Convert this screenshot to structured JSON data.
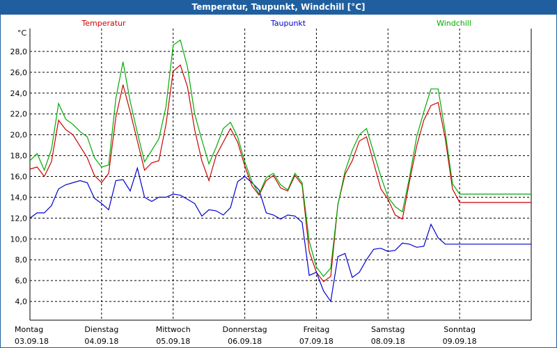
{
  "window": {
    "title": "Temperatur, Taupunkt, Windchill [°C]"
  },
  "chart_data": {
    "type": "line",
    "title": "Temperatur, Taupunkt, Windchill [°C]",
    "ylabel": "°C",
    "ylim": [
      2.2,
      30.2
    ],
    "yticks": [
      "4,0",
      "6,0",
      "8,0",
      "10,0",
      "12,0",
      "14,0",
      "16,0",
      "18,0",
      "20,0",
      "22,0",
      "24,0",
      "26,0",
      "28,0"
    ],
    "ytick_values": [
      4,
      6,
      8,
      10,
      12,
      14,
      16,
      18,
      20,
      22,
      24,
      26,
      28
    ],
    "xlim": [
      0,
      7
    ],
    "x_labels": [
      {
        "day": "Montag",
        "date": "03.09.18"
      },
      {
        "day": "Dienstag",
        "date": "04.09.18"
      },
      {
        "day": "Mittwoch",
        "date": "05.09.18"
      },
      {
        "day": "Donnerstag",
        "date": "06.09.18"
      },
      {
        "day": "Freitag",
        "date": "07.09.18"
      },
      {
        "day": "Samstag",
        "date": "08.09.18"
      },
      {
        "day": "Sonntag",
        "date": "09.09.18"
      }
    ],
    "grid": true,
    "series": [
      {
        "name": "Temperatur",
        "color": "#cc0000",
        "x": [
          0,
          0.1,
          0.2,
          0.3,
          0.4,
          0.5,
          0.6,
          0.7,
          0.8,
          0.9,
          1.0,
          1.1,
          1.2,
          1.3,
          1.4,
          1.5,
          1.6,
          1.7,
          1.8,
          1.9,
          2.0,
          2.1,
          2.2,
          2.3,
          2.4,
          2.5,
          2.6,
          2.7,
          2.8,
          2.9,
          3.0,
          3.1,
          3.2,
          3.3,
          3.4,
          3.5,
          3.6,
          3.7,
          3.8,
          3.9,
          4.0,
          4.1,
          4.2,
          4.3,
          4.4,
          4.5,
          4.6,
          4.7,
          4.8,
          4.9,
          5.0,
          5.1,
          5.2,
          5.3,
          5.4,
          5.5,
          5.6,
          5.7,
          5.8,
          5.9,
          6.0,
          6.1,
          6.2,
          6.3,
          6.4,
          6.5,
          6.6,
          6.7,
          6.8,
          6.9,
          7.0
        ],
        "values": [
          16.7,
          16.9,
          16.0,
          17.4,
          21.4,
          20.5,
          20.0,
          18.9,
          17.8,
          16.1,
          15.4,
          16.3,
          21.7,
          24.8,
          22.2,
          19.4,
          16.6,
          17.3,
          17.5,
          21.0,
          26.1,
          26.7,
          24.6,
          20.5,
          17.5,
          15.6,
          18.0,
          19.3,
          20.6,
          19.3,
          17.0,
          15.1,
          14.2,
          15.6,
          16.1,
          14.9,
          14.6,
          16.1,
          15.2,
          8.8,
          6.8,
          5.9,
          6.4,
          13.3,
          16.2,
          17.5,
          19.4,
          19.8,
          17.3,
          14.8,
          13.8,
          12.3,
          11.9,
          15.5,
          18.9,
          21.4,
          22.8,
          23.1,
          19.6,
          14.8,
          13.5,
          13.5,
          13.5,
          13.5,
          13.5,
          13.5,
          13.5,
          13.5,
          13.5,
          13.5,
          13.5
        ]
      },
      {
        "name": "Taupunkt",
        "color": "#0000cc",
        "x": [
          0,
          0.1,
          0.2,
          0.3,
          0.4,
          0.5,
          0.6,
          0.7,
          0.8,
          0.9,
          1.0,
          1.1,
          1.2,
          1.3,
          1.4,
          1.5,
          1.6,
          1.7,
          1.8,
          1.9,
          2.0,
          2.1,
          2.2,
          2.3,
          2.4,
          2.5,
          2.6,
          2.7,
          2.8,
          2.9,
          3.0,
          3.1,
          3.2,
          3.3,
          3.4,
          3.5,
          3.6,
          3.7,
          3.8,
          3.9,
          4.0,
          4.1,
          4.2,
          4.3,
          4.4,
          4.5,
          4.6,
          4.7,
          4.8,
          4.9,
          5.0,
          5.1,
          5.2,
          5.3,
          5.4,
          5.5,
          5.6,
          5.7,
          5.8,
          5.9,
          6.0,
          6.1,
          6.2,
          6.3,
          6.4,
          6.5,
          6.6,
          6.7,
          6.8,
          6.9,
          7.0
        ],
        "values": [
          12.0,
          12.5,
          12.5,
          13.2,
          14.8,
          15.2,
          15.4,
          15.6,
          15.4,
          13.9,
          13.4,
          12.8,
          15.6,
          15.7,
          14.6,
          16.8,
          14.0,
          13.6,
          14.0,
          14.0,
          14.3,
          14.2,
          13.8,
          13.4,
          12.2,
          12.8,
          12.7,
          12.3,
          13.0,
          15.5,
          16.0,
          15.4,
          14.7,
          12.5,
          12.3,
          11.9,
          12.3,
          12.2,
          11.6,
          6.5,
          6.8,
          5.0,
          4.0,
          8.3,
          8.6,
          6.3,
          6.8,
          8.0,
          9.0,
          9.1,
          8.8,
          8.9,
          9.6,
          9.5,
          9.2,
          9.3,
          11.4,
          10.1,
          9.5,
          9.5,
          9.5,
          9.5,
          9.5,
          9.5,
          9.5,
          9.5,
          9.5,
          9.5,
          9.5,
          9.5,
          9.5
        ]
      },
      {
        "name": "Windchill",
        "color": "#00aa00",
        "x": [
          0,
          0.1,
          0.2,
          0.3,
          0.4,
          0.5,
          0.6,
          0.7,
          0.8,
          0.9,
          1.0,
          1.1,
          1.2,
          1.3,
          1.4,
          1.5,
          1.6,
          1.7,
          1.8,
          1.9,
          2.0,
          2.1,
          2.2,
          2.3,
          2.4,
          2.5,
          2.6,
          2.7,
          2.8,
          2.9,
          3.0,
          3.1,
          3.2,
          3.3,
          3.4,
          3.5,
          3.6,
          3.7,
          3.8,
          3.9,
          4.0,
          4.1,
          4.2,
          4.3,
          4.4,
          4.5,
          4.6,
          4.7,
          4.8,
          4.9,
          5.0,
          5.1,
          5.2,
          5.3,
          5.4,
          5.5,
          5.6,
          5.7,
          5.8,
          5.9,
          6.0,
          6.1,
          6.2,
          6.3,
          6.4,
          6.5,
          6.6,
          6.7,
          6.8,
          6.9,
          7.0
        ],
        "values": [
          17.5,
          18.2,
          16.6,
          18.6,
          23.0,
          21.5,
          21.0,
          20.3,
          19.8,
          17.8,
          16.9,
          17.1,
          23.5,
          27.0,
          23.2,
          20.2,
          17.4,
          18.5,
          19.6,
          22.7,
          28.6,
          29.1,
          26.5,
          22.0,
          19.5,
          17.2,
          18.8,
          20.6,
          21.2,
          19.8,
          17.4,
          15.5,
          14.3,
          15.9,
          16.3,
          15.2,
          14.7,
          16.3,
          15.4,
          9.8,
          7.3,
          6.4,
          7.2,
          13.3,
          16.5,
          18.5,
          20.0,
          20.6,
          18.3,
          16.0,
          14.0,
          13.1,
          12.6,
          15.9,
          19.8,
          22.2,
          24.4,
          24.4,
          20.2,
          15.3,
          14.3,
          14.3,
          14.3,
          14.3,
          14.3,
          14.3,
          14.3,
          14.3,
          14.3,
          14.3,
          14.3
        ]
      }
    ]
  }
}
